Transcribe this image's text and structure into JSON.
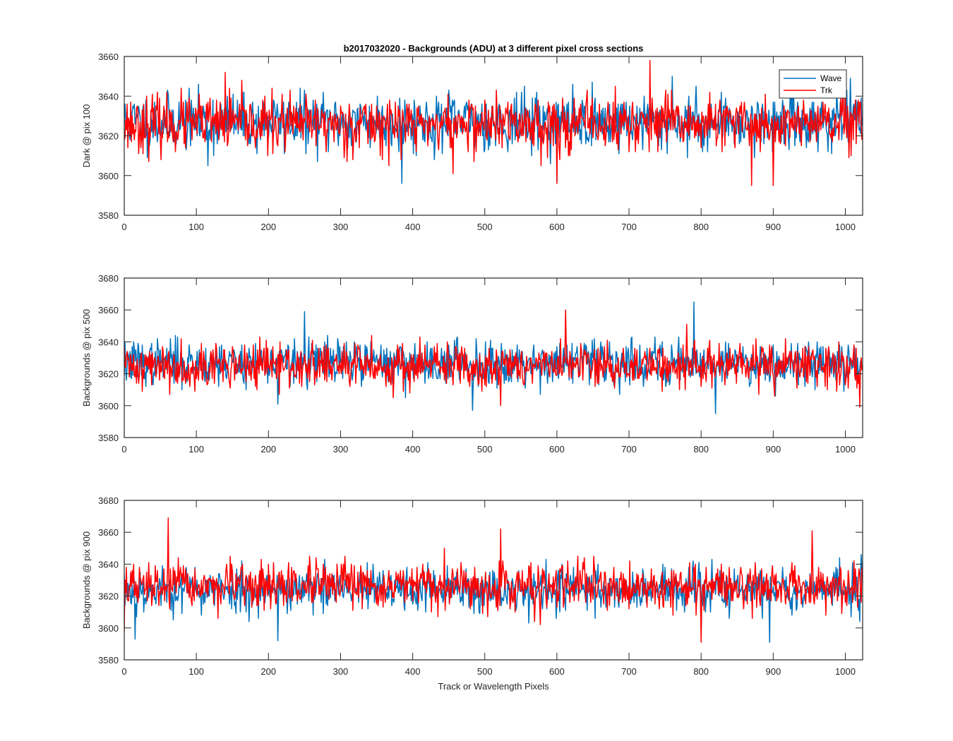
{
  "chart_data": {
    "title": "b2017032020 - Backgrounds (ADU) at 3 different pixel cross sections",
    "xlabel": "Track or Wavelength Pixels",
    "legend": {
      "position": "top-right",
      "entries": [
        "Wave",
        "Trk"
      ]
    },
    "colors": {
      "Wave": "#0072BD",
      "Trk": "#FF0000"
    },
    "panels": [
      {
        "type": "line",
        "ylabel": "Dark @ pix 100",
        "xlim": [
          0,
          1024
        ],
        "ylim": [
          3580,
          3660
        ],
        "xticks": [
          0,
          100,
          200,
          300,
          400,
          500,
          600,
          700,
          800,
          900,
          1000
        ],
        "yticks": [
          3580,
          3600,
          3620,
          3640,
          3660
        ],
        "series": [
          {
            "name": "Wave",
            "mean": 3627,
            "std": 7,
            "n": 1024,
            "seed": 11,
            "spikes": [
              [
                385,
                3596
              ],
              [
                600,
                3597
              ],
              [
                760,
                3650
              ],
              [
                1000,
                3653
              ],
              [
                116,
                3605
              ]
            ]
          },
          {
            "name": "Trk",
            "mean": 3626,
            "std": 7,
            "n": 1024,
            "seed": 23,
            "spikes": [
              [
                140,
                3652
              ],
              [
                729,
                3658
              ],
              [
                600,
                3596
              ],
              [
                870,
                3595
              ],
              [
                900,
                3595
              ],
              [
                456,
                3601
              ]
            ]
          }
        ]
      },
      {
        "type": "line",
        "ylabel": "Backgrounds @ pix 500",
        "xlim": [
          0,
          1024
        ],
        "ylim": [
          3580,
          3680
        ],
        "xticks": [
          0,
          100,
          200,
          300,
          400,
          500,
          600,
          700,
          800,
          900,
          1000
        ],
        "yticks": [
          3580,
          3600,
          3620,
          3640,
          3660,
          3680
        ],
        "series": [
          {
            "name": "Wave",
            "mean": 3627,
            "std": 7,
            "n": 1024,
            "seed": 37,
            "spikes": [
              [
                250,
                3659
              ],
              [
                790,
                3665
              ],
              [
                483,
                3597
              ],
              [
                820,
                3595
              ],
              [
                213,
                3601
              ]
            ]
          },
          {
            "name": "Trk",
            "mean": 3625,
            "std": 7,
            "n": 1024,
            "seed": 41,
            "spikes": [
              [
                612,
                3660
              ],
              [
                522,
                3600
              ],
              [
                1020,
                3599
              ],
              [
                780,
                3651
              ]
            ]
          }
        ]
      },
      {
        "type": "line",
        "ylabel": "Backgrounds @ pix 900",
        "xlim": [
          0,
          1024
        ],
        "ylim": [
          3580,
          3680
        ],
        "xticks": [
          0,
          100,
          200,
          300,
          400,
          500,
          600,
          700,
          800,
          900,
          1000
        ],
        "yticks": [
          3580,
          3600,
          3620,
          3640,
          3660,
          3680
        ],
        "series": [
          {
            "name": "Wave",
            "mean": 3624,
            "std": 7,
            "n": 1024,
            "seed": 53,
            "spikes": [
              [
                15,
                3593
              ],
              [
                213,
                3592
              ],
              [
                895,
                3591
              ],
              [
                1022,
                3646
              ]
            ]
          },
          {
            "name": "Trk",
            "mean": 3626,
            "std": 7,
            "n": 1024,
            "seed": 67,
            "spikes": [
              [
                61,
                3669
              ],
              [
                522,
                3662
              ],
              [
                954,
                3661
              ],
              [
                800,
                3591
              ],
              [
                0,
                3598
              ]
            ]
          }
        ]
      }
    ]
  }
}
